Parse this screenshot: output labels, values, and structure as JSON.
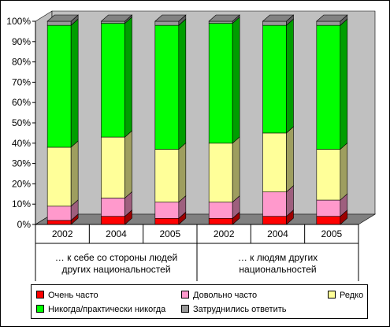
{
  "chart_data": {
    "type": "bar",
    "stacked": true,
    "three_d": true,
    "ylim": [
      0,
      100
    ],
    "y_ticks": [
      "0%",
      "10%",
      "20%",
      "30%",
      "40%",
      "50%",
      "60%",
      "70%",
      "80%",
      "90%",
      "100%"
    ],
    "categories": [
      "2002",
      "2004",
      "2005",
      "2002",
      "2004",
      "2005"
    ],
    "groups": [
      {
        "label": "… к себе со стороны людей других национальностей"
      },
      {
        "label": "… к  людям других национальностей"
      }
    ],
    "series": [
      {
        "name": "Очень часто",
        "color": "#ff0000",
        "values": [
          2,
          4,
          3,
          3,
          4,
          4
        ]
      },
      {
        "name": "Довольно часто",
        "color": "#ff99cc",
        "values": [
          7,
          9,
          8,
          8,
          12,
          8
        ]
      },
      {
        "name": "Редко",
        "color": "#ffff99",
        "values": [
          29,
          30,
          26,
          29,
          29,
          25
        ]
      },
      {
        "name": "Никогда/практически никогда",
        "color": "#00ff00",
        "values": [
          60,
          56,
          61,
          59,
          53,
          61
        ]
      },
      {
        "name": "Затруднились ответить",
        "color": "#999999",
        "values": [
          2,
          1,
          2,
          1,
          2,
          2
        ]
      }
    ],
    "legend_position": "bottom",
    "grid": false
  }
}
